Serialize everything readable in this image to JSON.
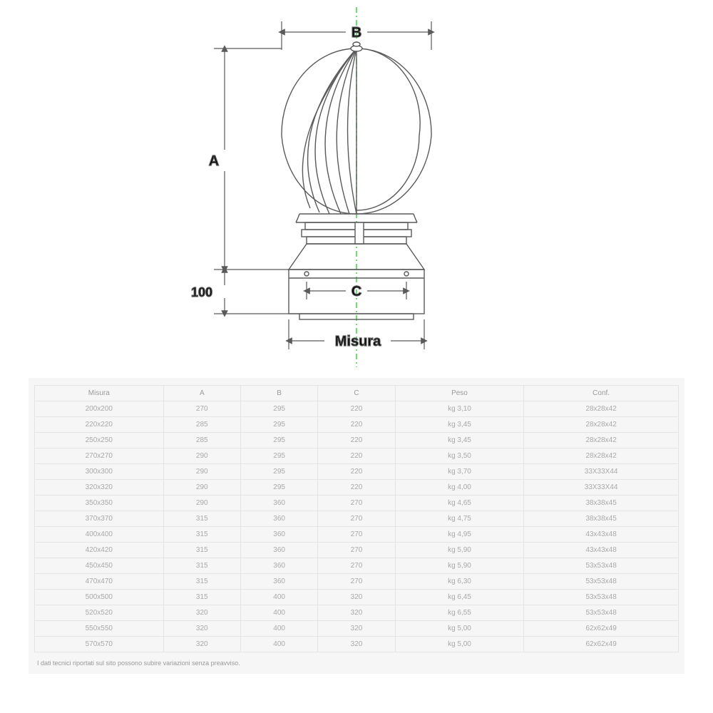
{
  "diagram": {
    "labels": {
      "A": "A",
      "B": "B",
      "C": "C",
      "h100": "100",
      "misura": "Misura"
    },
    "colors": {
      "stroke": "#5a5a5a",
      "centerline": "#3bd93b",
      "text": "#000000",
      "fill_light": "#ffffff"
    },
    "font": {
      "label_size": 20,
      "label_weight": "bold"
    }
  },
  "table": {
    "columns": [
      "Misura",
      "A",
      "B",
      "C",
      "Peso",
      "Conf."
    ],
    "col_widths": [
      "20%",
      "12%",
      "12%",
      "12%",
      "20%",
      "24%"
    ],
    "rows": [
      [
        "200x200",
        "270",
        "295",
        "220",
        "kg 3,10",
        "28x28x42"
      ],
      [
        "220x220",
        "285",
        "295",
        "220",
        "kg 3,45",
        "28x28x42"
      ],
      [
        "250x250",
        "285",
        "295",
        "220",
        "kg 3,45",
        "28x28x42"
      ],
      [
        "270x270",
        "290",
        "295",
        "220",
        "kg 3,50",
        "28x28x42"
      ],
      [
        "300x300",
        "290",
        "295",
        "220",
        "kg 3,70",
        "33X33X44"
      ],
      [
        "320x320",
        "290",
        "295",
        "220",
        "kg 4,00",
        "33X33X44"
      ],
      [
        "350x350",
        "290",
        "360",
        "270",
        "kg 4,65",
        "38x38x45"
      ],
      [
        "370x370",
        "315",
        "360",
        "270",
        "kg 4,75",
        "38x38x45"
      ],
      [
        "400x400",
        "315",
        "360",
        "270",
        "kg 4,95",
        "43x43x48"
      ],
      [
        "420x420",
        "315",
        "360",
        "270",
        "kg 5,90",
        "43x43x48"
      ],
      [
        "450x450",
        "315",
        "360",
        "270",
        "kg 5,90",
        "53x53x48"
      ],
      [
        "470x470",
        "315",
        "360",
        "270",
        "kg 6,30",
        "53x53x48"
      ],
      [
        "500x500",
        "315",
        "400",
        "320",
        "kg 6,45",
        "53x53x48"
      ],
      [
        "520x520",
        "320",
        "400",
        "320",
        "kg 6,55",
        "53x53x48"
      ],
      [
        "550x550",
        "320",
        "400",
        "320",
        "kg 5,00",
        "62x62x49"
      ],
      [
        "570x570",
        "320",
        "400",
        "320",
        "kg 5,00",
        "62x62x49"
      ]
    ],
    "footnote": "I dati tecnici riportati sul sito possono subire variazioni senza preavviso.",
    "colors": {
      "bg": "#f6f6f6",
      "border": "#e4e4e4",
      "text": "#a9a9a9"
    },
    "font_size": 10
  }
}
